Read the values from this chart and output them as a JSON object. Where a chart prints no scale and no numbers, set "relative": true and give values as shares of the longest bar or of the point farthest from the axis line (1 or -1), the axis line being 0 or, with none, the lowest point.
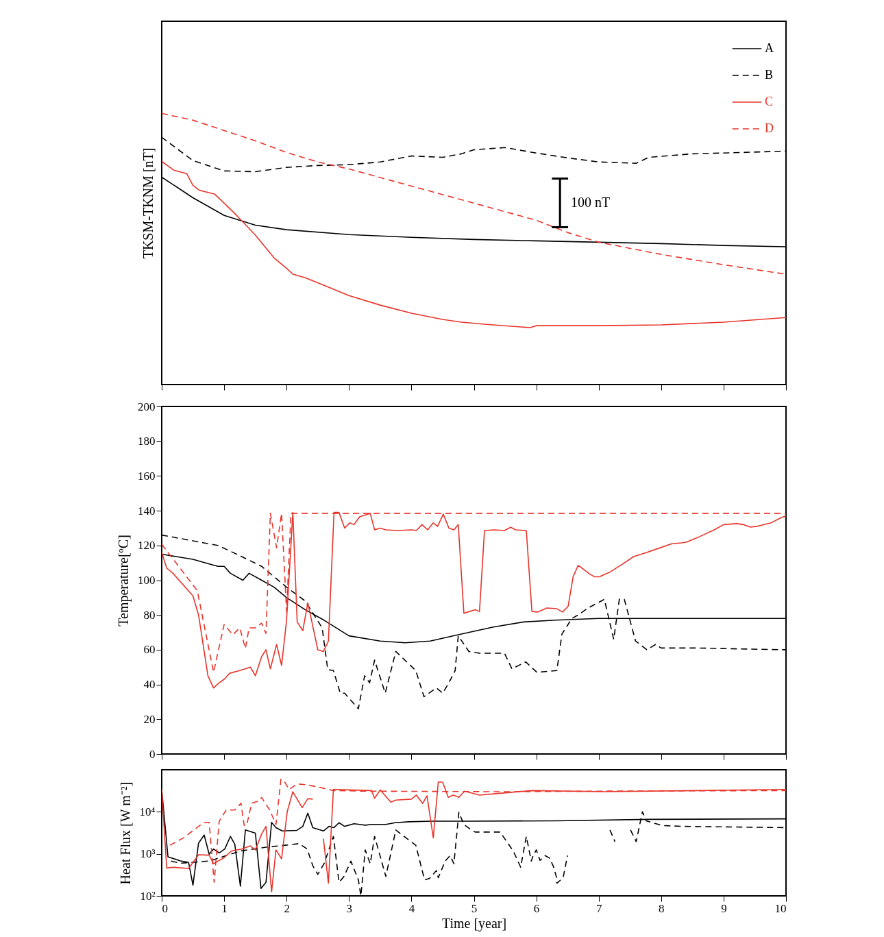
{
  "chart_data": [
    {
      "type": "line",
      "ylabel": "TKSM-TKNM [nT]",
      "relative": true,
      "xlim": [
        0,
        10
      ],
      "xticks": [
        0,
        1,
        2,
        3,
        4,
        5,
        6,
        7,
        8,
        9,
        10
      ],
      "tick_labels": false,
      "legend": "top right",
      "annotations": [
        "100 nT"
      ],
      "series": [
        {
          "name": "A",
          "color": "#000000",
          "line_style": "solid",
          "x": [
            0,
            0.5,
            1,
            1.5,
            2,
            3,
            4,
            5,
            6,
            7,
            8,
            9,
            10
          ],
          "values": [
            0.765,
            0.689,
            0.624,
            0.588,
            0.571,
            0.553,
            0.543,
            0.535,
            0.53,
            0.525,
            0.52,
            0.513,
            0.508
          ]
        },
        {
          "name": "B",
          "color": "#000000",
          "line_style": "dashed",
          "x": [
            0,
            0.5,
            1,
            1.5,
            2,
            2.5,
            3,
            3.5,
            4,
            4.5,
            4.8,
            5,
            5.5,
            6,
            6.5,
            7,
            7.6,
            7.8,
            8.5,
            9,
            10
          ],
          "values": [
            0.912,
            0.826,
            0.788,
            0.785,
            0.801,
            0.808,
            0.811,
            0.821,
            0.843,
            0.838,
            0.851,
            0.866,
            0.874,
            0.854,
            0.836,
            0.821,
            0.816,
            0.838,
            0.851,
            0.854,
            0.861
          ]
        },
        {
          "name": "C",
          "color": "#e8332a",
          "line_style": "solid",
          "x": [
            0,
            0.2,
            0.4,
            0.5,
            0.6,
            0.85,
            1,
            1.2,
            1.5,
            1.8,
            2,
            2.1,
            2.3,
            2.6,
            3,
            3.5,
            4,
            4.5,
            4.8,
            5.2,
            5.6,
            5.9,
            6,
            7,
            8,
            9,
            10
          ],
          "values": [
            0.823,
            0.79,
            0.778,
            0.735,
            0.717,
            0.702,
            0.669,
            0.624,
            0.551,
            0.467,
            0.429,
            0.407,
            0.394,
            0.366,
            0.328,
            0.293,
            0.263,
            0.24,
            0.23,
            0.222,
            0.215,
            0.21,
            0.217,
            0.217,
            0.22,
            0.23,
            0.247
          ]
        },
        {
          "name": "D",
          "color": "#e8332a",
          "line_style": "dashed",
          "x": [
            0,
            0.5,
            1,
            1.5,
            2,
            2.5,
            3,
            4,
            5,
            6,
            6.5,
            7,
            8,
            9,
            10
          ],
          "values": [
            1,
            0.975,
            0.937,
            0.899,
            0.856,
            0.821,
            0.795,
            0.732,
            0.669,
            0.606,
            0.561,
            0.525,
            0.48,
            0.442,
            0.407
          ]
        }
      ]
    },
    {
      "type": "line",
      "ylabel": "Temperature[ºC]",
      "xlim": [
        0,
        10
      ],
      "xticks": [
        0,
        1,
        2,
        3,
        4,
        5,
        6,
        7,
        8,
        9,
        10
      ],
      "ylim": [
        0,
        200
      ],
      "yticks": [
        0,
        20,
        40,
        60,
        80,
        100,
        120,
        140,
        160,
        180,
        200
      ],
      "tick_labels": "y",
      "series": [
        {
          "color": "#000000",
          "line_style": "solid",
          "x": [
            0,
            0.5,
            0.8,
            0.9,
            1,
            1.1,
            1.3,
            1.4,
            1.6,
            1.8,
            2,
            2.3,
            2.6,
            3,
            3.5,
            3.9,
            4.3,
            4.8,
            5.3,
            5.8,
            6.3,
            7,
            8,
            9,
            10
          ],
          "values": [
            115,
            112,
            109,
            108,
            108,
            104,
            100,
            104,
            100,
            96,
            90,
            83,
            77,
            68,
            65,
            64,
            65,
            69,
            73,
            76,
            77,
            78,
            78,
            78,
            78
          ]
        },
        {
          "color": "#000000",
          "line_style": "dashed",
          "x": [
            0,
            0.3,
            0.9,
            1.2,
            1.6,
            2,
            2.3,
            2.57,
            2.66,
            2.75,
            2.86,
            2.93,
            3.15,
            3.25,
            3.33,
            3.41,
            3.58,
            3.75,
            4.07,
            4.2,
            4.4,
            4.5,
            4.6,
            4.7,
            4.75,
            4.92,
            5.09,
            5.49,
            5.61,
            5.83,
            6.01,
            6.33,
            6.41,
            6.57,
            6.67,
            6.83,
            7.09,
            7.24,
            7.33,
            7.41,
            7.59,
            7.77,
            7.91,
            8,
            8.24,
            8.56,
            9.92,
            10
          ],
          "values": [
            126,
            124,
            120,
            115,
            108,
            96,
            88,
            72.6,
            48.5,
            48,
            35,
            35,
            26,
            45,
            41,
            54,
            35,
            59,
            48,
            33,
            38,
            35,
            41,
            48,
            68,
            59,
            58,
            58,
            49,
            53,
            47,
            48,
            69,
            78,
            80,
            84,
            89,
            66,
            89,
            89,
            65,
            60,
            63,
            61,
            61,
            61,
            60,
            60
          ]
        },
        {
          "color": "#e8332a",
          "line_style": "solid",
          "x": [
            0,
            0.08,
            0.18,
            0.5,
            0.59,
            0.74,
            0.83,
            0.92,
            1,
            1.09,
            1.25,
            1.34,
            1.42,
            1.5,
            1.6,
            1.67,
            1.74,
            1.84,
            1.92,
            2,
            2.1,
            2.17,
            2.26,
            2.34,
            2.5,
            2.59,
            2.67,
            2.76,
            2.84,
            2.93,
            3.01,
            3.08,
            3.17,
            3.34,
            3.41,
            3.5,
            3.59,
            3.78,
            4,
            4.08,
            4.17,
            4.26,
            4.35,
            4.42,
            4.51,
            4.6,
            4.68,
            4.75,
            4.84,
            4.93,
            5.02,
            5.09,
            5.17,
            5.33,
            5.49,
            5.59,
            5.67,
            5.84,
            5.93,
            6.02,
            6.17,
            6.33,
            6.42,
            6.51,
            6.59,
            6.67,
            6.75,
            6.85,
            6.93,
            7.01,
            7.17,
            7.37,
            7.56,
            7.77,
            7.93,
            8.17,
            8.33,
            8.41,
            8.61,
            8.85,
            9,
            9.21,
            9.32,
            9.43,
            9.53,
            9.76,
            9.92,
            10
          ],
          "values": [
            116,
            107,
            104,
            91,
            80,
            45,
            38,
            41,
            43,
            46.5,
            48,
            49,
            50,
            45,
            56,
            60,
            49,
            63,
            51,
            77,
            139,
            76,
            71,
            87,
            60,
            59,
            65,
            139,
            139,
            130,
            133,
            132,
            136.5,
            138.5,
            129,
            130,
            129,
            128.6,
            129,
            128.6,
            132,
            129,
            133,
            131,
            138,
            130,
            129,
            132,
            81,
            82,
            83,
            82,
            128.6,
            129,
            128.6,
            130.5,
            129,
            128.6,
            82,
            81.7,
            84,
            83.6,
            81.7,
            85,
            102,
            108.5,
            106.5,
            103.7,
            102,
            102,
            104.5,
            109,
            113.6,
            116,
            118,
            121,
            121.5,
            122,
            125,
            129,
            132,
            132.6,
            132,
            130.6,
            131,
            133,
            136,
            137
          ]
        },
        {
          "color": "#e8332a",
          "line_style": "dashed",
          "x": [
            0,
            0.57,
            0.83,
            1,
            1.14,
            1.25,
            1.34,
            1.4,
            1.5,
            1.6,
            1.67,
            1.74,
            1.84,
            1.92,
            2,
            2.07,
            10
          ],
          "values": [
            120.7,
            94,
            47,
            74.5,
            68.6,
            72.6,
            60.7,
            72.6,
            72.6,
            75.3,
            69.4,
            138.5,
            118.7,
            138.5,
            82,
            138.5,
            138.5
          ]
        }
      ]
    },
    {
      "type": "line",
      "ylabel": "Heat Flux [W m⁻²]",
      "xlabel": "Time [year]",
      "xlim": [
        0,
        10
      ],
      "xticks": [
        0,
        1,
        2,
        3,
        4,
        5,
        6,
        7,
        8,
        9,
        10
      ],
      "ylim": [
        100,
        100000
      ],
      "log": true,
      "yticks": [
        {
          "value": 100,
          "label": "10²"
        },
        {
          "value": 1000,
          "label": "10³"
        },
        {
          "value": 10000,
          "label": "10⁴"
        }
      ],
      "series": [
        {
          "color": "#000000",
          "line_style": "solid",
          "x": [
            0,
            0.1,
            0.3,
            0.43,
            0.5,
            0.59,
            0.68,
            0.76,
            0.83,
            0.92,
            1.01,
            1.1,
            1.17,
            1.26,
            1.34,
            1.5,
            1.59,
            1.67,
            1.76,
            1.83,
            1.93,
            2.16,
            2.26,
            2.34,
            2.42,
            2.59,
            2.68,
            2.76,
            2.84,
            2.93,
            3.08,
            3.17,
            3.26,
            3.36,
            3.59,
            3.74,
            3.96,
            4.33,
            4.98,
            6.33,
            7.8,
            10
          ],
          "values": [
            34000,
            850,
            680,
            630,
            180,
            1800,
            2800,
            980,
            1300,
            1050,
            1300,
            2600,
            1700,
            170,
            3700,
            3100,
            150,
            210,
            5600,
            4200,
            3500,
            3600,
            4500,
            9300,
            4200,
            3500,
            4500,
            4200,
            5500,
            4500,
            5200,
            5000,
            4800,
            5000,
            5000,
            5500,
            5800,
            6000,
            6000,
            6100,
            6600,
            6800
          ]
        },
        {
          "color": "#000000",
          "line_style": "dashed",
          "x": [
            0.15,
            0.3,
            0.52,
            0.78,
            1.03,
            1.28,
            1.47,
            1.69,
            1.98,
            2.2,
            2.33,
            2.42,
            2.5,
            2.6,
            2.75,
            2.84,
            2.92,
            3.03,
            3.15,
            3.19,
            3.26,
            3.34,
            3.41,
            3.59,
            3.75,
            3.92,
            4.07,
            4.21,
            4.29,
            4.4,
            4.43,
            4.54,
            4.62,
            4.68,
            4.76,
            4.84,
            4.96,
            5.02,
            5.42,
            5.55,
            5.64,
            5.75,
            5.84,
            5.92,
            5.95,
            6,
            6.06,
            6.14,
            6.21,
            6.27,
            6.32,
            6.33,
            6.43,
            6.5,
            6.8,
            7.18,
            7.26,
            7.4,
            7.51,
            7.6,
            7.7,
            7.76,
            8.02,
            8.35,
            10
          ],
          "values": [
            670,
            600,
            630,
            680,
            910,
            1180,
            1300,
            1450,
            1600,
            1750,
            1300,
            520,
            325,
            580,
            2600,
            210,
            290,
            670,
            240,
            100,
            1240,
            580,
            2600,
            290,
            3700,
            2350,
            1600,
            240,
            260,
            400,
            270,
            670,
            910,
            580,
            9700,
            5000,
            3700,
            3300,
            3300,
            1750,
            1100,
            480,
            2600,
            670,
            910,
            1240,
            700,
            910,
            800,
            520,
            290,
            200,
            270,
            910,
            null,
            3700,
            1950,
            null,
            3700,
            1950,
            10000,
            6100,
            4700,
            4500,
            4200
          ]
        },
        {
          "color": "#e8332a",
          "line_style": "solid",
          "x": [
            0,
            0.08,
            0.18,
            0.43,
            0.59,
            0.76,
            0.83,
            1,
            1.12,
            1.28,
            1.42,
            1.5,
            1.6,
            1.67,
            1.76,
            1.83,
            1.92,
            2.01,
            2.1,
            2.25,
            2.34,
            2.42,
            2.5,
            2.59,
            2.67,
            2.75,
            3.36,
            3.41,
            3.5,
            3.67,
            3.75,
            4,
            4.08,
            4.18,
            4.25,
            4.35,
            4.43,
            4.5,
            4.59,
            4.67,
            4.76,
            4.85,
            5.09,
            5.35,
            5.93,
            7.07,
            10
          ],
          "values": [
            34000,
            460,
            480,
            450,
            950,
            930,
            580,
            810,
            1180,
            1300,
            1550,
            1230,
            2950,
            4500,
            125,
            1240,
            760,
            10000,
            30000,
            12500,
            20600,
            20000,
            null,
            2300,
            200,
            34000,
            32000,
            21000,
            33000,
            17000,
            19000,
            20000,
            25000,
            15800,
            24000,
            2400,
            51000,
            51000,
            22000,
            25000,
            22000,
            31000,
            25000,
            27000,
            32000,
            30000,
            34000
          ]
        },
        {
          "color": "#e8332a",
          "line_style": "dashed",
          "x": [
            0.13,
            0.34,
            0.67,
            0.76,
            0.84,
            0.92,
            1.03,
            1.17,
            1.27,
            1.32,
            1.36,
            1.44,
            1.55,
            1.6,
            1.73,
            1.83,
            1.91,
            1.97,
            2.04,
            2.17,
            2.32,
            2.5,
            2.75,
            3.23,
            5.5,
            7,
            10
          ],
          "values": [
            1600,
            2350,
            5500,
            5600,
            210,
            5900,
            11000,
            11000,
            16000,
            4800,
            4700,
            16000,
            18000,
            22000,
            11000,
            5000,
            60000,
            51000,
            34000,
            46000,
            44000,
            39000,
            32000,
            31000,
            30000,
            31000,
            32000
          ]
        }
      ]
    }
  ]
}
